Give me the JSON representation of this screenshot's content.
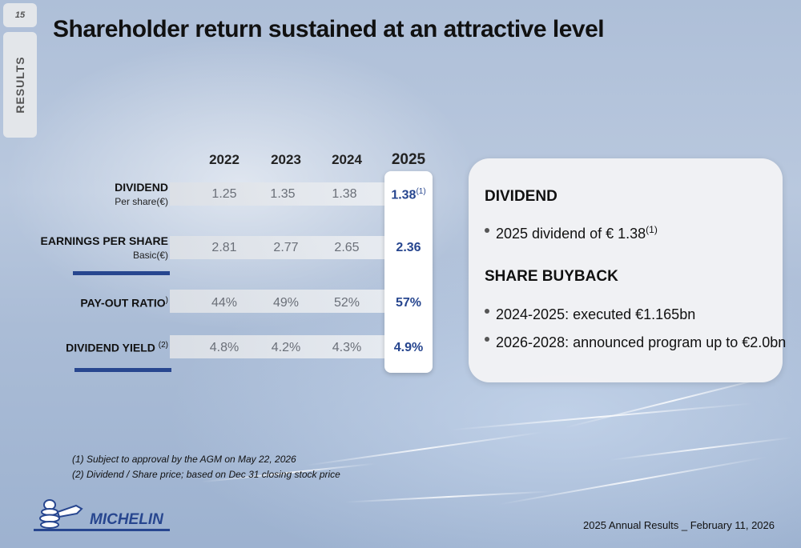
{
  "page_number": "15",
  "section_tab": "RESULTS",
  "title": "Shareholder return sustained at an attractive level",
  "years": [
    "2022",
    "2023",
    "2024",
    "2025"
  ],
  "rows": [
    {
      "label": "DIVIDEND",
      "sub": "Per share(€)",
      "values": [
        "1.25",
        "1.35",
        "1.38"
      ],
      "highlight": "1.38",
      "highlight_sup": "(1)"
    },
    {
      "label": "EARNINGS PER SHARE",
      "sub": "Basic(€)",
      "values": [
        "2.81",
        "2.77",
        "2.65"
      ],
      "highlight": "2.36"
    },
    {
      "label": "PAY-OUT RATIO",
      "label_sup": ")",
      "values": [
        "44%",
        "49%",
        "52%"
      ],
      "highlight": "57%"
    },
    {
      "label": "DIVIDEND YIELD",
      "label_sup": "(2)",
      "values": [
        "4.8%",
        "4.2%",
        "4.3%"
      ],
      "highlight": "4.9%"
    }
  ],
  "card": {
    "dividend_heading": "DIVIDEND",
    "dividend_bullet": "2025 dividend of € 1.38",
    "dividend_bullet_sup": "(1)",
    "buyback_heading": "SHARE BUYBACK",
    "buyback_bullets": [
      "2024-2025: executed €1.165bn",
      "2026-2028: announced program up to €2.0bn"
    ]
  },
  "footnotes": [
    "(1) Subject to approval by the AGM on May 22, 2026",
    "(2) Dividend / Share price; based on Dec 31 closing stock price"
  ],
  "logo_text": "MICHELIN",
  "footer": "2025 Annual Results _ February 11, 2026",
  "colors": {
    "accent": "#27468f"
  }
}
